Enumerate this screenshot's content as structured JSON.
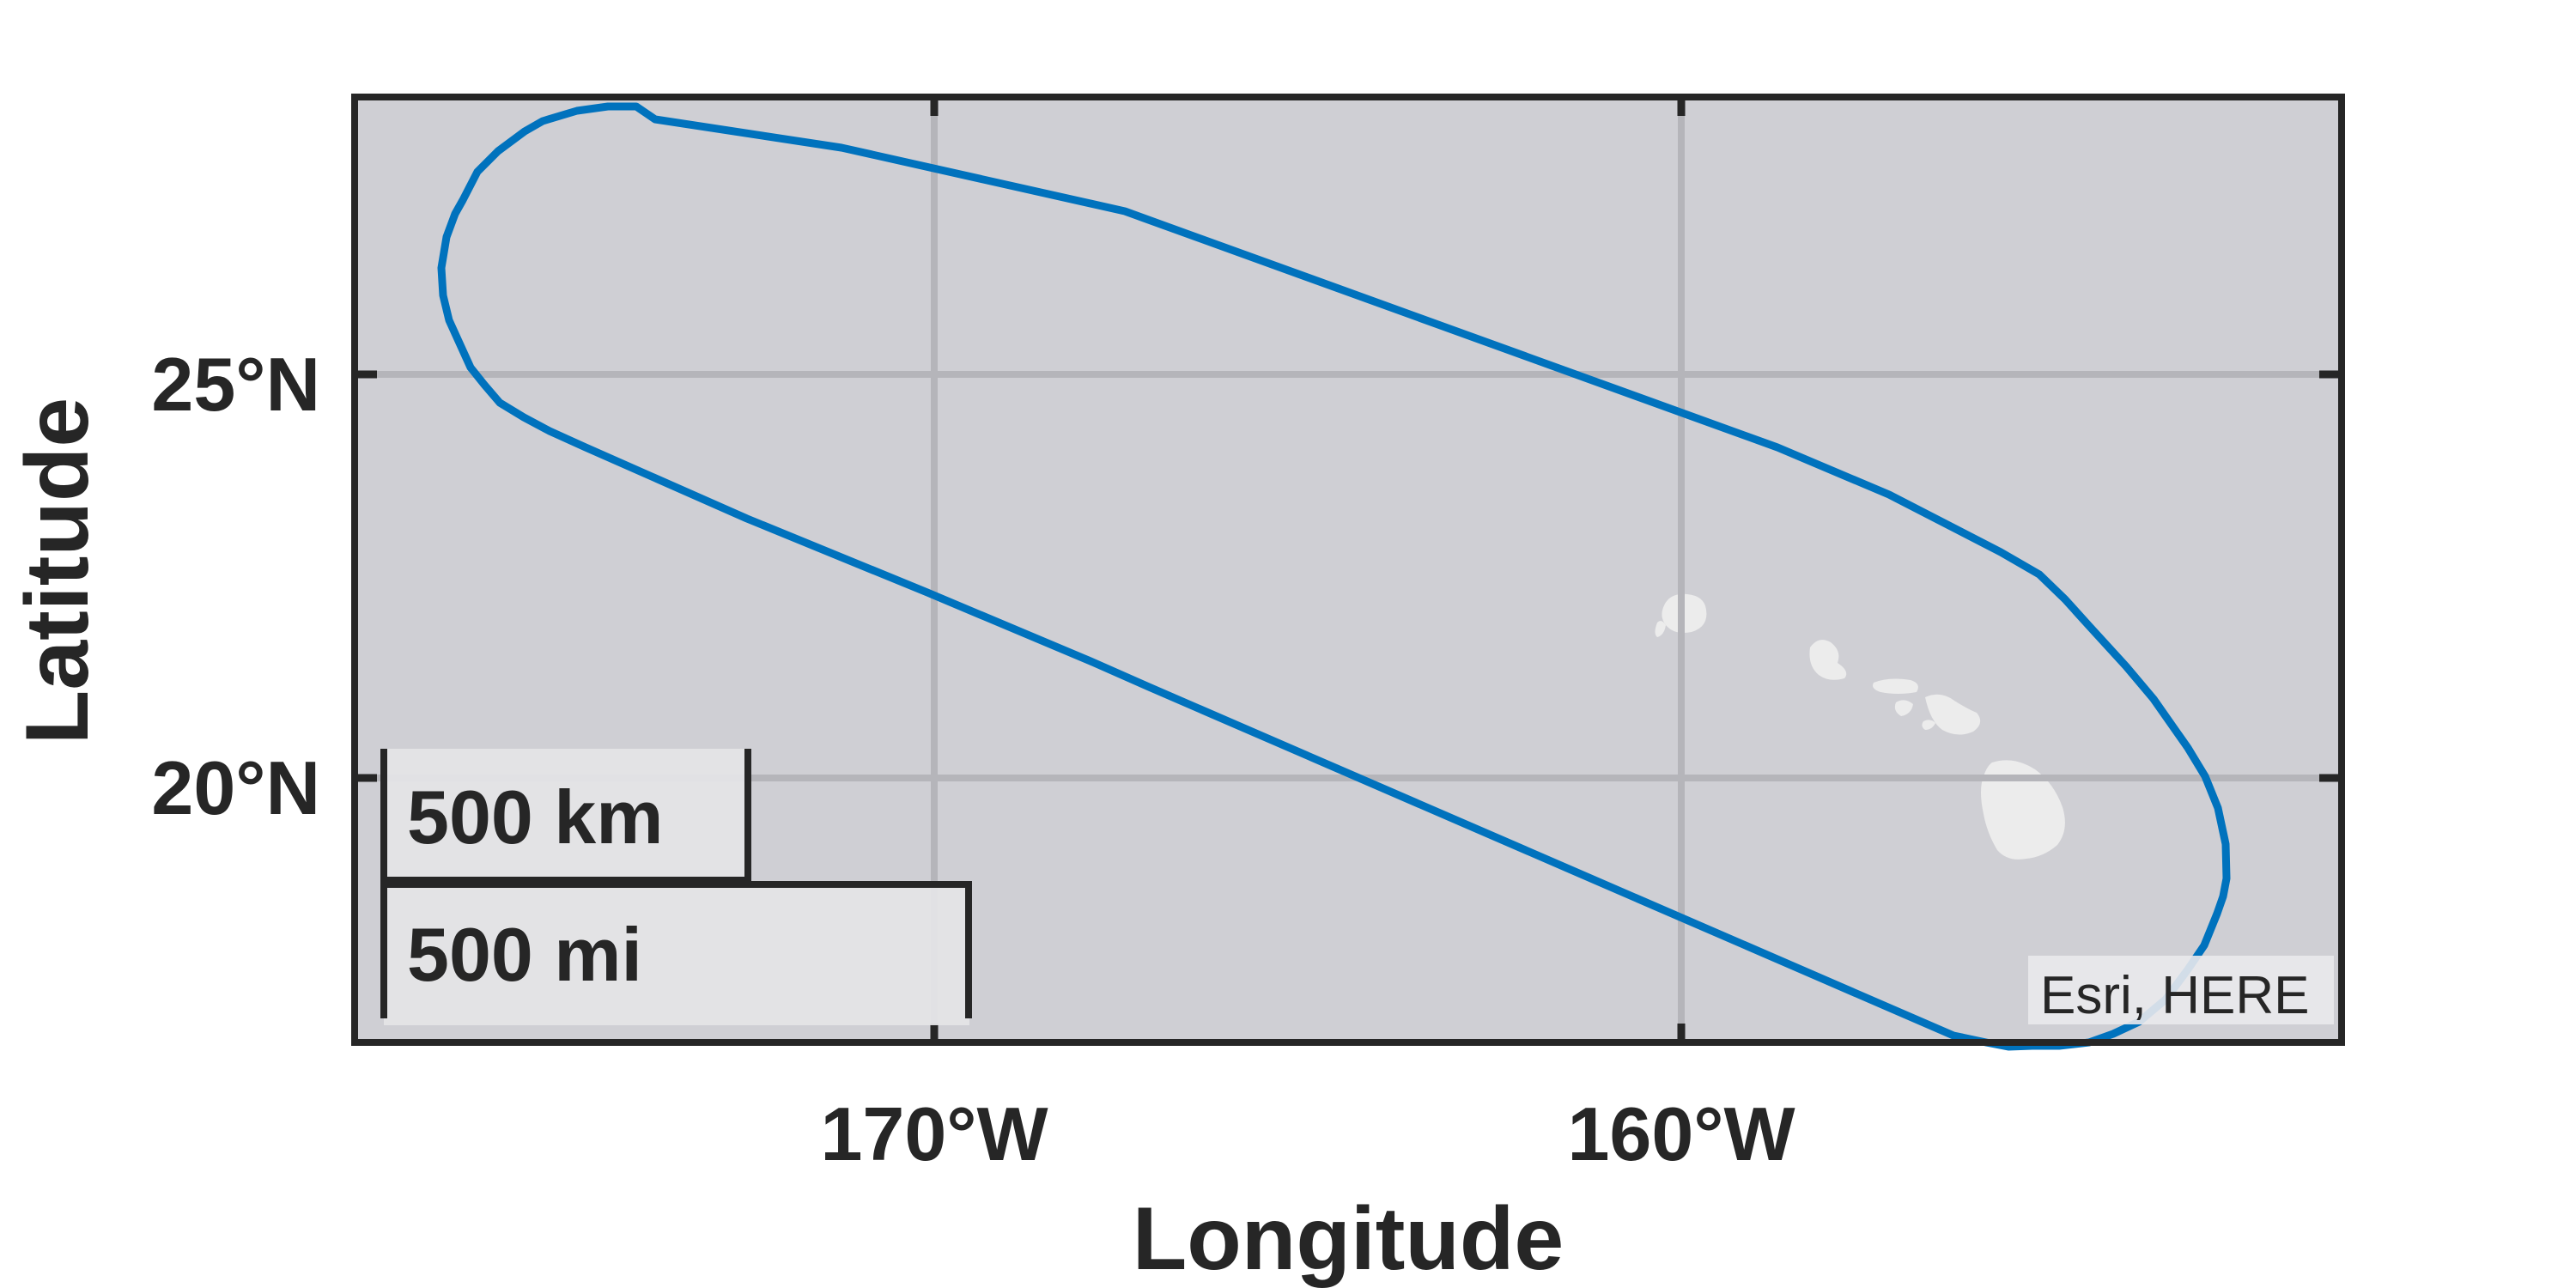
{
  "map": {
    "basemap": "grayland",
    "attribution": "Esri, HERE",
    "colors": {
      "ocean": "#cfcfd4",
      "land": "#ececec",
      "gridline": "#b5b5ba",
      "frame": "#262626",
      "route": "#0072bd",
      "scale_box": "#e4e4e6"
    },
    "axes": {
      "xlabel": "Longitude",
      "ylabel": "Latitude",
      "lon_ticks": [
        {
          "lon": -170,
          "label": "170°W"
        },
        {
          "lon": -160,
          "label": "160°W"
        }
      ],
      "lat_ticks": [
        {
          "lat": 25,
          "label": "25°N"
        },
        {
          "lat": 20,
          "label": "20°N"
        }
      ],
      "grid": true
    },
    "scale_bar": {
      "km_label": "500 km",
      "mi_label": "500 mi"
    },
    "route": {
      "description": "Closed loop enclosing the Northwestern Hawaiian Islands and main Hawaiian Islands",
      "color": "#0072bd"
    }
  }
}
